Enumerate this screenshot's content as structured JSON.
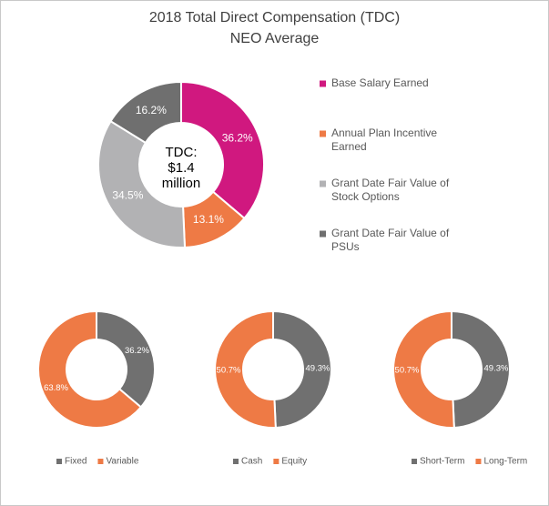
{
  "chart_data": [
    {
      "type": "pie",
      "variant": "donut",
      "title": "2018 Total Direct Compensation (TDC)",
      "subtitle": "NEO Average",
      "center_label": [
        "TDC:",
        "$1.4",
        "million"
      ],
      "categories": [
        "Base Salary Earned",
        "Annual Plan Incentive Earned",
        "Grant Date Fair Value of Stock Options",
        "Grant Date Fair Value of PSUs"
      ],
      "legend_lines": [
        [
          "Base Salary Earned"
        ],
        [
          "Annual Plan Incentive",
          "Earned"
        ],
        [
          "Grant Date Fair Value of",
          "Stock Options"
        ],
        [
          "Grant Date Fair Value of",
          "PSUs"
        ]
      ],
      "values": [
        36.2,
        13.1,
        34.5,
        16.2
      ],
      "labels": [
        "36.2%",
        "13.1%",
        "34.5%",
        "16.2%"
      ],
      "colors": [
        "#d0187f",
        "#ee7a45",
        "#b2b2b4",
        "#6f6f6f"
      ],
      "legend_position": "right"
    },
    {
      "type": "pie",
      "variant": "donut",
      "categories": [
        "Fixed",
        "Variable"
      ],
      "values": [
        36.2,
        63.8
      ],
      "labels": [
        "36.2%",
        "63.8%"
      ],
      "colors": [
        "#707070",
        "#ee7a45"
      ],
      "legend_position": "bottom"
    },
    {
      "type": "pie",
      "variant": "donut",
      "categories": [
        "Cash",
        "Equity"
      ],
      "values": [
        49.3,
        50.7
      ],
      "labels": [
        "49.3%",
        "50.7%"
      ],
      "colors": [
        "#707070",
        "#ee7a45"
      ],
      "legend_position": "bottom"
    },
    {
      "type": "pie",
      "variant": "donut",
      "categories": [
        "Short-Term",
        "Long-Term"
      ],
      "values": [
        49.3,
        50.7
      ],
      "labels": [
        "49.3%",
        "50.7%"
      ],
      "colors": [
        "#707070",
        "#ee7a45"
      ],
      "legend_position": "bottom"
    }
  ]
}
